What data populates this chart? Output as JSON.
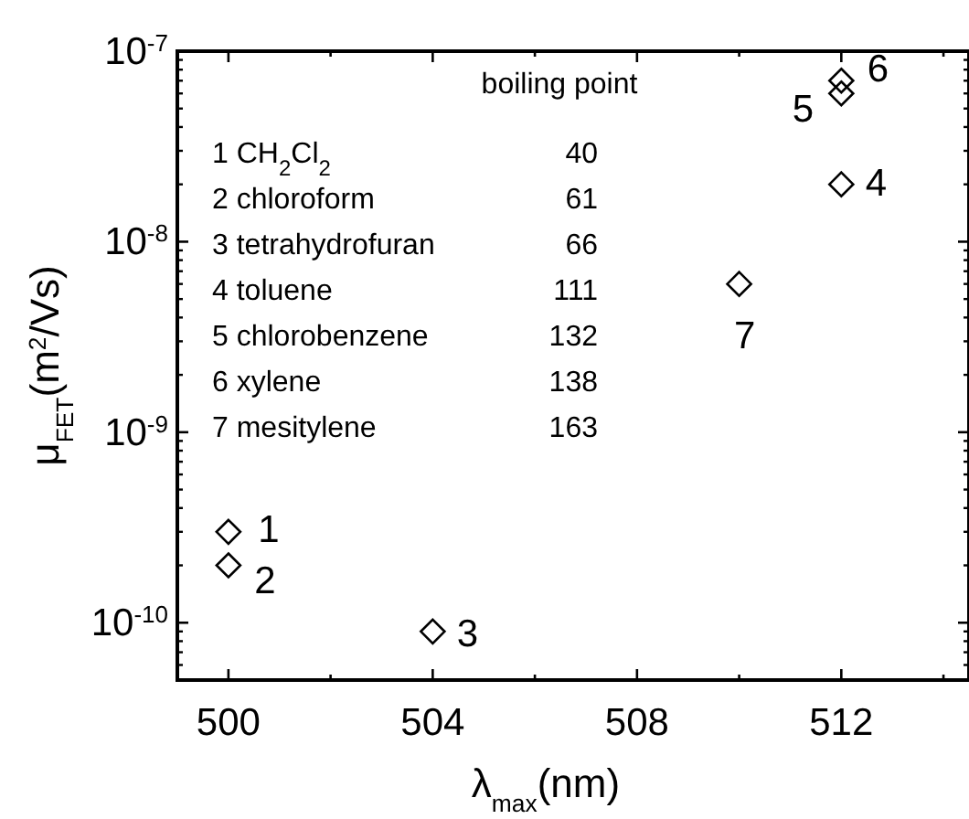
{
  "chart_data": {
    "type": "scatter",
    "xlabel": "λ$_{max}$(nm)",
    "ylabel": "μ$_{FET}$(m$^{2}$/Vs)",
    "x": [
      500,
      500,
      504,
      512,
      512,
      512,
      510
    ],
    "values": [
      3e-10,
      2e-10,
      9e-11,
      2e-08,
      6e-08,
      7e-08,
      6e-09
    ],
    "color": "#000000",
    "marker": "diamond",
    "log": "y",
    "grid": false,
    "xlim": [
      499,
      514.5
    ],
    "xticks": [
      500,
      {
        "value": 502,
        "label": null
      },
      504,
      {
        "value": 506,
        "label": null
      },
      508,
      {
        "value": 510,
        "label": null
      },
      512,
      {
        "value": 514,
        "label": null
      }
    ],
    "ylim": [
      5e-11,
      1e-07
    ],
    "yticks": [
      {
        "value": 1e-10,
        "label": "10$^{-10}$"
      },
      {
        "value": 1e-09,
        "label": "10$^{-9}$"
      },
      {
        "value": 1e-08,
        "label": "10$^{-8}$"
      },
      {
        "value": 1e-07,
        "label": "10$^{-7}$"
      }
    ],
    "annotations": [
      {
        "text": "1",
        "x": 500,
        "y": 3e-10
      },
      {
        "text": "2",
        "x": 500,
        "y": 2e-10
      },
      {
        "text": "3",
        "x": 504,
        "y": 9e-11
      },
      {
        "text": "4",
        "x": 512,
        "y": 2e-08
      },
      {
        "text": "5",
        "x": 512,
        "y": 6e-08
      },
      {
        "text": "6",
        "x": 512,
        "y": 7e-08
      },
      {
        "text": "7",
        "x": 510,
        "y": 6e-09
      },
      "boiling point",
      "1 CH$_{2}$Cl$_{2}$",
      "40",
      "2 chloroform",
      "61",
      "3 tetrahydrofuran",
      "66",
      "4 toluene",
      "111",
      "5 chlorobenzene",
      "132",
      "6 xylene",
      "138",
      "7 mesitylene",
      "163"
    ]
  }
}
